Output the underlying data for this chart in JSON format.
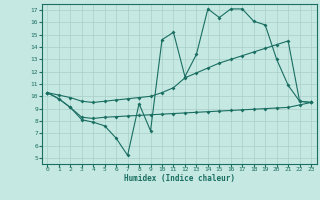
{
  "bg_color": "#c5e8e2",
  "line_color": "#1a6e62",
  "grid_color": "#a8cfc8",
  "xlabel": "Humidex (Indice chaleur)",
  "xlim": [
    -0.5,
    23.5
  ],
  "ylim": [
    4.5,
    17.5
  ],
  "xticks": [
    0,
    1,
    2,
    3,
    4,
    5,
    6,
    7,
    8,
    9,
    10,
    11,
    12,
    13,
    14,
    15,
    16,
    17,
    18,
    19,
    20,
    21,
    22,
    23
  ],
  "yticks": [
    5,
    6,
    7,
    8,
    9,
    10,
    11,
    12,
    13,
    14,
    15,
    16,
    17
  ],
  "line1_x": [
    0,
    1,
    2,
    3,
    4,
    5,
    6,
    7,
    8,
    9,
    10,
    11,
    12,
    13,
    14,
    15,
    16,
    17,
    18,
    19,
    20,
    21,
    22,
    23
  ],
  "line1_y": [
    10.3,
    9.8,
    9.1,
    8.1,
    7.9,
    7.6,
    6.6,
    5.2,
    9.4,
    7.2,
    14.6,
    15.2,
    11.6,
    13.4,
    17.1,
    16.4,
    17.1,
    17.1,
    16.1,
    15.8,
    13.0,
    10.9,
    9.6,
    9.5
  ],
  "line2_x": [
    0,
    1,
    2,
    3,
    4,
    5,
    6,
    7,
    8,
    9,
    10,
    11,
    12,
    13,
    14,
    15,
    16,
    17,
    18,
    19,
    20,
    21,
    22,
    23
  ],
  "line2_y": [
    10.3,
    10.1,
    9.9,
    9.6,
    9.5,
    9.6,
    9.7,
    9.8,
    9.9,
    10.0,
    10.3,
    10.7,
    11.5,
    11.9,
    12.3,
    12.7,
    13.0,
    13.3,
    13.6,
    13.9,
    14.2,
    14.5,
    9.6,
    9.5
  ],
  "line3_x": [
    0,
    1,
    2,
    3,
    4,
    5,
    6,
    7,
    8,
    9,
    10,
    11,
    12,
    13,
    14,
    15,
    16,
    17,
    18,
    19,
    20,
    21,
    22,
    23
  ],
  "line3_y": [
    10.3,
    9.8,
    9.1,
    8.3,
    8.2,
    8.3,
    8.35,
    8.4,
    8.45,
    8.5,
    8.55,
    8.6,
    8.65,
    8.7,
    8.75,
    8.8,
    8.85,
    8.9,
    8.95,
    9.0,
    9.05,
    9.1,
    9.3,
    9.5
  ]
}
